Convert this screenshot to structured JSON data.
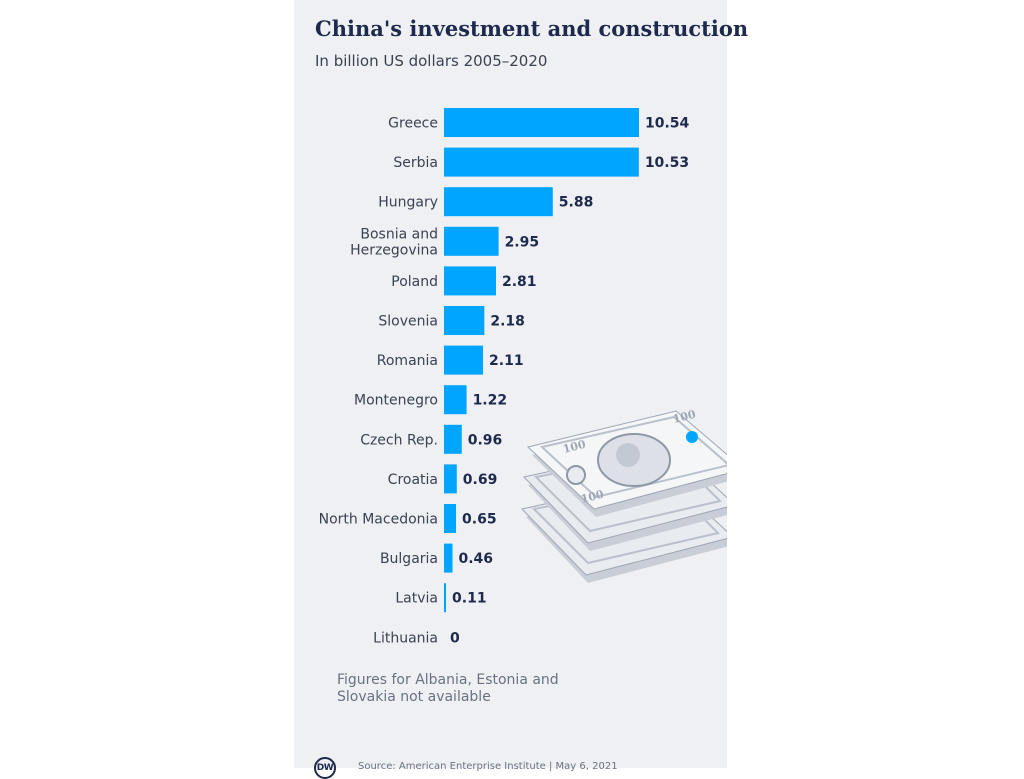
{
  "header": {
    "title": "China's investment and construction",
    "subtitle": "In billion US dollars 2005–2020"
  },
  "chart_data": {
    "type": "bar",
    "orientation": "horizontal",
    "title": "China's investment and construction",
    "subtitle": "In billion US dollars 2005–2020",
    "categories": [
      "Greece",
      "Serbia",
      "Hungary",
      "Bosnia and Herzegovina",
      "Poland",
      "Slovenia",
      "Romania",
      "Montenegro",
      "Czech Rep.",
      "Croatia",
      "North Macedonia",
      "Bulgaria",
      "Latvia",
      "Lithuania"
    ],
    "category_lines": [
      [
        "Greece"
      ],
      [
        "Serbia"
      ],
      [
        "Hungary"
      ],
      [
        "Bosnia and",
        "Herzegovina"
      ],
      [
        "Poland"
      ],
      [
        "Slovenia"
      ],
      [
        "Romania"
      ],
      [
        "Montenegro"
      ],
      [
        "Czech Rep."
      ],
      [
        "Croatia"
      ],
      [
        "North Macedonia"
      ],
      [
        "Bulgaria"
      ],
      [
        "Latvia"
      ],
      [
        "Lithuania"
      ]
    ],
    "values": [
      10.54,
      10.53,
      5.88,
      2.95,
      2.81,
      2.18,
      2.11,
      1.22,
      0.96,
      0.69,
      0.65,
      0.46,
      0.11,
      0
    ],
    "value_labels": [
      "10.54",
      "10.53",
      "5.88",
      "2.95",
      "2.81",
      "2.18",
      "2.11",
      "1.22",
      "0.96",
      "0.69",
      "0.65",
      "0.46",
      "0.11",
      "0"
    ],
    "xlim": [
      0,
      10.54
    ],
    "bar_color": "#00a5ff",
    "grid": false,
    "legend": "none"
  },
  "footer": {
    "note": "Figures for Albania, Estonia and Slovakia not available",
    "logo_text": "DW",
    "source": "Source: American Enterprise Institute | May 6, 2021"
  },
  "illustration": {
    "icon": "dollar-bills-stack-icon",
    "bill_label": "100"
  },
  "colors": {
    "panel_bg": "#eef0f3",
    "title": "#1d2a4d",
    "bar": "#00a5ff"
  }
}
